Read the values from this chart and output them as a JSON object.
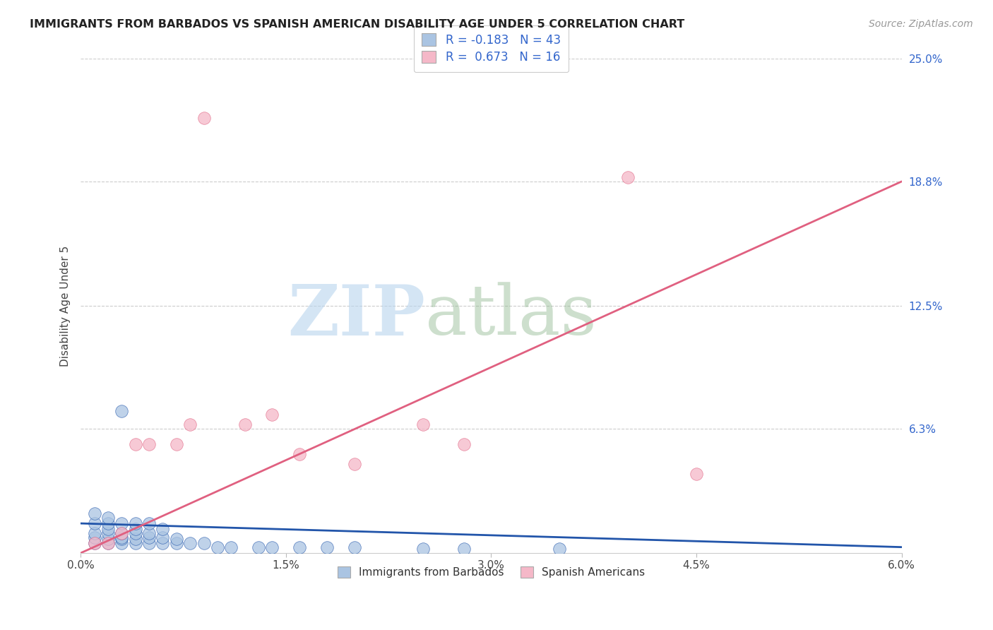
{
  "title": "IMMIGRANTS FROM BARBADOS VS SPANISH AMERICAN DISABILITY AGE UNDER 5 CORRELATION CHART",
  "source": "Source: ZipAtlas.com",
  "ylabel": "Disability Age Under 5",
  "xlim": [
    0.0,
    0.06
  ],
  "ylim": [
    0.0,
    0.25
  ],
  "ytick_labels": [
    "6.3%",
    "12.5%",
    "18.8%",
    "25.0%"
  ],
  "ytick_values": [
    0.063,
    0.125,
    0.188,
    0.25
  ],
  "xtick_labels": [
    "0.0%",
    "1.5%",
    "3.0%",
    "4.5%",
    "6.0%"
  ],
  "xtick_values": [
    0.0,
    0.015,
    0.03,
    0.045,
    0.06
  ],
  "legend1_label": "R = -0.183   N = 43",
  "legend2_label": "R =  0.673   N = 16",
  "barbados_color": "#aac4e2",
  "spanish_color": "#f5b8c8",
  "trendline_blue": "#2255aa",
  "trendline_pink": "#e06080",
  "barbados_x": [
    0.001,
    0.001,
    0.001,
    0.001,
    0.001,
    0.002,
    0.002,
    0.002,
    0.002,
    0.002,
    0.002,
    0.003,
    0.003,
    0.003,
    0.003,
    0.003,
    0.003,
    0.004,
    0.004,
    0.004,
    0.004,
    0.004,
    0.005,
    0.005,
    0.005,
    0.005,
    0.006,
    0.006,
    0.006,
    0.007,
    0.007,
    0.008,
    0.009,
    0.01,
    0.011,
    0.013,
    0.014,
    0.016,
    0.018,
    0.02,
    0.025,
    0.028,
    0.035
  ],
  "barbados_y": [
    0.005,
    0.008,
    0.01,
    0.015,
    0.02,
    0.005,
    0.007,
    0.01,
    0.012,
    0.015,
    0.018,
    0.005,
    0.007,
    0.008,
    0.01,
    0.015,
    0.072,
    0.005,
    0.007,
    0.01,
    0.012,
    0.015,
    0.005,
    0.008,
    0.01,
    0.015,
    0.005,
    0.008,
    0.012,
    0.005,
    0.007,
    0.005,
    0.005,
    0.003,
    0.003,
    0.003,
    0.003,
    0.003,
    0.003,
    0.003,
    0.002,
    0.002,
    0.002
  ],
  "spanish_x": [
    0.001,
    0.002,
    0.003,
    0.004,
    0.005,
    0.007,
    0.008,
    0.009,
    0.012,
    0.014,
    0.016,
    0.02,
    0.025,
    0.028,
    0.04,
    0.045
  ],
  "spanish_y": [
    0.005,
    0.005,
    0.01,
    0.055,
    0.055,
    0.055,
    0.065,
    0.22,
    0.065,
    0.07,
    0.05,
    0.045,
    0.065,
    0.055,
    0.19,
    0.04
  ],
  "legend_bottom_barbados": "Immigrants from Barbados",
  "legend_bottom_spanish": "Spanish Americans",
  "blue_trend_x": [
    0.0,
    0.06
  ],
  "blue_trend_y": [
    0.015,
    0.003
  ],
  "pink_trend_x": [
    0.0,
    0.06
  ],
  "pink_trend_y": [
    0.0,
    0.188
  ]
}
